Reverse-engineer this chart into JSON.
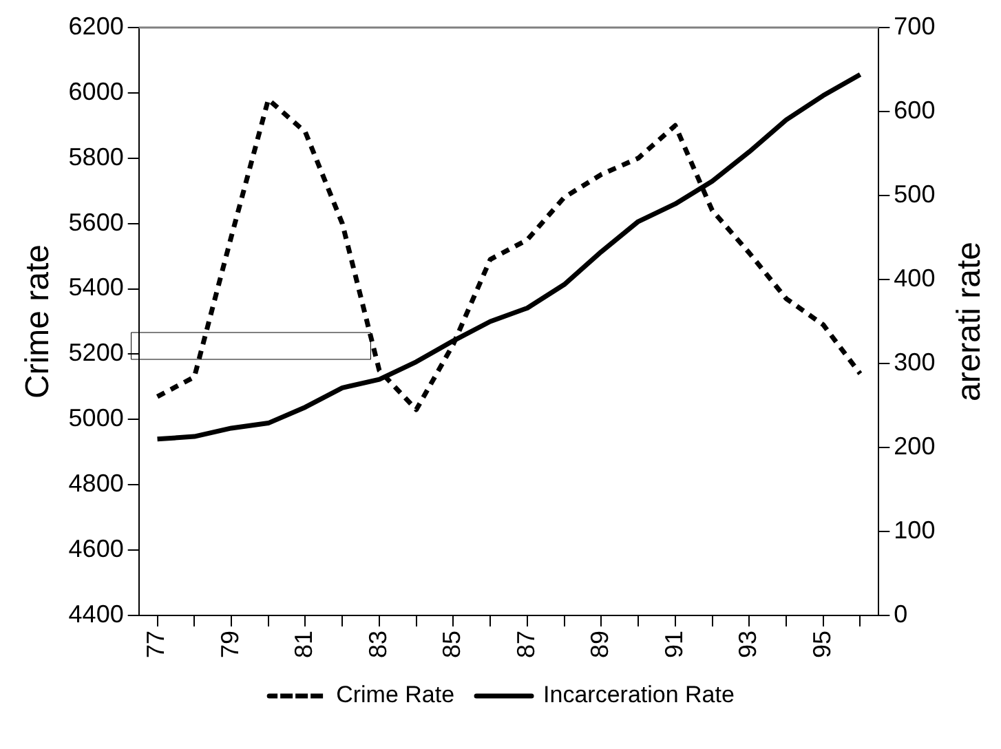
{
  "chart_data": {
    "type": "line",
    "xlabel": null,
    "ylabel": "Crime rate",
    "y2label": "arerati rate",
    "categories": [
      "77",
      null,
      "79",
      null,
      "81",
      null,
      "83",
      null,
      "85",
      null,
      "87",
      null,
      "89",
      null,
      "91",
      null,
      "93",
      null,
      "95",
      null
    ],
    "series": [
      {
        "name": "Crime Rate",
        "color": "#000000",
        "line_style": "dashed",
        "values": [
          5070,
          5130,
          5560,
          5980,
          5880,
          5600,
          5150,
          5030,
          5230,
          5490,
          5550,
          5680,
          5750,
          5800,
          5900,
          5640,
          5510,
          5370,
          5290,
          5140
        ]
      },
      {
        "name": "Incarceration Rate",
        "color": "#000000",
        "line_style": "solid",
        "axis": "y2",
        "values": [
          210,
          213,
          223,
          229,
          248,
          271,
          281,
          302,
          327,
          350,
          366,
          394,
          433,
          469,
          490,
          517,
          552,
          590,
          619,
          644
        ]
      }
    ],
    "ylim": [
      4400,
      6200
    ],
    "yticks": [
      4400,
      4600,
      4800,
      5000,
      5200,
      5400,
      5600,
      5800,
      6000,
      6200
    ],
    "y2lim": [
      0,
      700
    ],
    "y2ticks": [
      0,
      100,
      200,
      300,
      400,
      500,
      600,
      700
    ],
    "grid": false,
    "legend": "bottom",
    "marker": "none"
  }
}
